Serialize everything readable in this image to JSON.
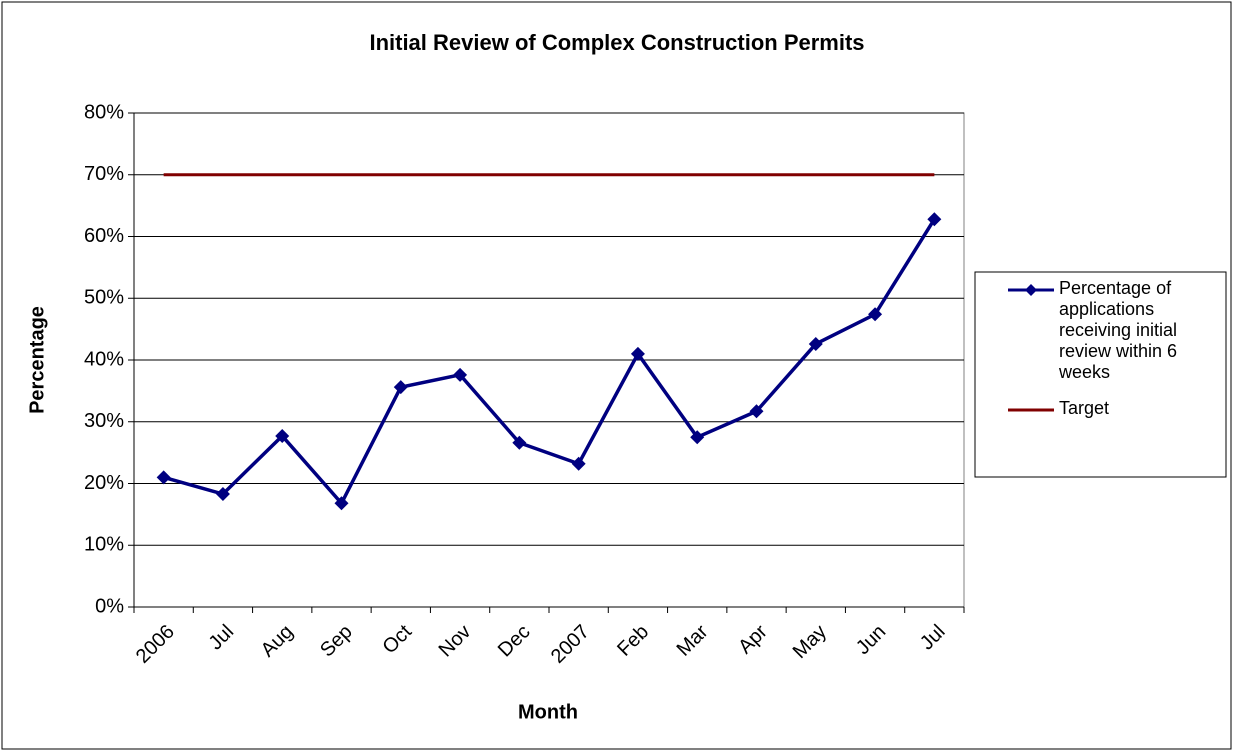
{
  "chart_data": {
    "type": "line",
    "title": "Initial Review of Complex Construction Permits",
    "x_label": "Month",
    "y_label": "Percentage",
    "categories": [
      "2006",
      "Jul",
      "Aug",
      "Sep",
      "Oct",
      "Nov",
      "Dec",
      "2007",
      "Feb",
      "Mar",
      "Apr",
      "May",
      "Jun",
      "Jul"
    ],
    "series": [
      {
        "name": "Percentage of applications receiving initial review within 6 weeks",
        "color": "#000080",
        "marker": "diamond",
        "values": [
          21,
          18.3,
          27.7,
          16.8,
          35.6,
          37.6,
          26.6,
          23.2,
          41.0,
          27.5,
          31.7,
          42.6,
          47.4,
          62.8
        ]
      },
      {
        "name": "Target",
        "color": "#800000",
        "marker": "none",
        "values": [
          70,
          70,
          70,
          70,
          70,
          70,
          70,
          70,
          70,
          70,
          70,
          70,
          70,
          70
        ]
      }
    ],
    "ylim": [
      0,
      80
    ],
    "yticks": [
      {
        "value": 0,
        "label": "0%"
      },
      {
        "value": 10,
        "label": "10%"
      },
      {
        "value": 20,
        "label": "20%"
      },
      {
        "value": 30,
        "label": "30%"
      },
      {
        "value": 40,
        "label": "40%"
      },
      {
        "value": 50,
        "label": "50%"
      },
      {
        "value": 60,
        "label": "60%"
      },
      {
        "value": 70,
        "label": "70%"
      },
      {
        "value": 80,
        "label": "80%"
      }
    ],
    "grid": true,
    "legend": "right"
  }
}
